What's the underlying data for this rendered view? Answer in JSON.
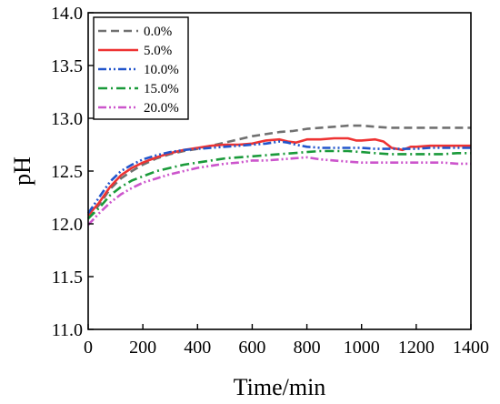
{
  "chart_data": {
    "type": "line",
    "title": "",
    "xlabel": "Time/min",
    "ylabel": "pH",
    "xlim": [
      0,
      1400
    ],
    "ylim": [
      11.0,
      14.0
    ],
    "xticks": [
      "0",
      "200",
      "400",
      "600",
      "800",
      "1000",
      "1200",
      "1400"
    ],
    "yticks": [
      "11.0",
      "11.5",
      "12.0",
      "12.5",
      "13.0",
      "13.5",
      "14.0"
    ],
    "grid": false,
    "legend_position": "top-left",
    "series": [
      {
        "name": "0.0%",
        "color": "#707070",
        "dash": "dash",
        "points": [
          [
            0,
            12.05
          ],
          [
            40,
            12.18
          ],
          [
            80,
            12.33
          ],
          [
            120,
            12.43
          ],
          [
            160,
            12.5
          ],
          [
            200,
            12.56
          ],
          [
            250,
            12.62
          ],
          [
            300,
            12.66
          ],
          [
            350,
            12.69
          ],
          [
            400,
            12.71
          ],
          [
            450,
            12.74
          ],
          [
            500,
            12.77
          ],
          [
            550,
            12.8
          ],
          [
            600,
            12.83
          ],
          [
            650,
            12.85
          ],
          [
            700,
            12.87
          ],
          [
            750,
            12.88
          ],
          [
            800,
            12.9
          ],
          [
            850,
            12.91
          ],
          [
            900,
            12.92
          ],
          [
            950,
            12.93
          ],
          [
            1000,
            12.93
          ],
          [
            1050,
            12.92
          ],
          [
            1100,
            12.91
          ],
          [
            1150,
            12.91
          ],
          [
            1200,
            12.91
          ],
          [
            1250,
            12.91
          ],
          [
            1300,
            12.91
          ],
          [
            1350,
            12.91
          ],
          [
            1400,
            12.91
          ]
        ]
      },
      {
        "name": "5.0%",
        "color": "#ee3333",
        "dash": "solid",
        "points": [
          [
            0,
            12.08
          ],
          [
            40,
            12.2
          ],
          [
            80,
            12.35
          ],
          [
            120,
            12.46
          ],
          [
            160,
            12.53
          ],
          [
            200,
            12.58
          ],
          [
            250,
            12.63
          ],
          [
            300,
            12.67
          ],
          [
            350,
            12.7
          ],
          [
            400,
            12.72
          ],
          [
            450,
            12.74
          ],
          [
            500,
            12.75
          ],
          [
            550,
            12.75
          ],
          [
            600,
            12.76
          ],
          [
            650,
            12.79
          ],
          [
            700,
            12.8
          ],
          [
            730,
            12.78
          ],
          [
            760,
            12.77
          ],
          [
            800,
            12.8
          ],
          [
            850,
            12.8
          ],
          [
            900,
            12.81
          ],
          [
            950,
            12.81
          ],
          [
            980,
            12.79
          ],
          [
            1000,
            12.79
          ],
          [
            1050,
            12.8
          ],
          [
            1080,
            12.78
          ],
          [
            1110,
            12.72
          ],
          [
            1150,
            12.7
          ],
          [
            1180,
            12.73
          ],
          [
            1200,
            12.73
          ],
          [
            1250,
            12.74
          ],
          [
            1300,
            12.74
          ],
          [
            1350,
            12.74
          ],
          [
            1400,
            12.74
          ]
        ]
      },
      {
        "name": "10.0%",
        "color": "#2255cc",
        "dash": "dashdotdot",
        "points": [
          [
            0,
            12.1
          ],
          [
            40,
            12.25
          ],
          [
            80,
            12.4
          ],
          [
            120,
            12.5
          ],
          [
            160,
            12.56
          ],
          [
            200,
            12.61
          ],
          [
            250,
            12.65
          ],
          [
            300,
            12.68
          ],
          [
            350,
            12.7
          ],
          [
            400,
            12.71
          ],
          [
            450,
            12.72
          ],
          [
            500,
            12.73
          ],
          [
            550,
            12.74
          ],
          [
            600,
            12.75
          ],
          [
            650,
            12.76
          ],
          [
            700,
            12.78
          ],
          [
            730,
            12.77
          ],
          [
            760,
            12.75
          ],
          [
            800,
            12.73
          ],
          [
            850,
            12.72
          ],
          [
            900,
            12.72
          ],
          [
            950,
            12.72
          ],
          [
            1000,
            12.72
          ],
          [
            1050,
            12.71
          ],
          [
            1100,
            12.71
          ],
          [
            1150,
            12.71
          ],
          [
            1200,
            12.71
          ],
          [
            1250,
            12.72
          ],
          [
            1300,
            12.72
          ],
          [
            1350,
            12.72
          ],
          [
            1400,
            12.72
          ]
        ]
      },
      {
        "name": "15.0%",
        "color": "#1a9a3a",
        "dash": "dashdot",
        "points": [
          [
            0,
            12.05
          ],
          [
            40,
            12.15
          ],
          [
            80,
            12.27
          ],
          [
            120,
            12.35
          ],
          [
            160,
            12.41
          ],
          [
            200,
            12.45
          ],
          [
            250,
            12.5
          ],
          [
            300,
            12.53
          ],
          [
            350,
            12.56
          ],
          [
            400,
            12.58
          ],
          [
            450,
            12.6
          ],
          [
            500,
            12.62
          ],
          [
            550,
            12.63
          ],
          [
            600,
            12.64
          ],
          [
            650,
            12.65
          ],
          [
            700,
            12.66
          ],
          [
            750,
            12.67
          ],
          [
            800,
            12.68
          ],
          [
            850,
            12.69
          ],
          [
            900,
            12.69
          ],
          [
            950,
            12.69
          ],
          [
            1000,
            12.68
          ],
          [
            1050,
            12.67
          ],
          [
            1100,
            12.66
          ],
          [
            1150,
            12.66
          ],
          [
            1200,
            12.66
          ],
          [
            1250,
            12.66
          ],
          [
            1300,
            12.66
          ],
          [
            1350,
            12.67
          ],
          [
            1400,
            12.67
          ]
        ]
      },
      {
        "name": "20.0%",
        "color": "#cc55cc",
        "dash": "dashdotdot",
        "points": [
          [
            0,
            11.99
          ],
          [
            40,
            12.1
          ],
          [
            80,
            12.2
          ],
          [
            120,
            12.28
          ],
          [
            160,
            12.34
          ],
          [
            200,
            12.39
          ],
          [
            250,
            12.43
          ],
          [
            300,
            12.47
          ],
          [
            350,
            12.5
          ],
          [
            400,
            12.53
          ],
          [
            450,
            12.55
          ],
          [
            500,
            12.57
          ],
          [
            550,
            12.58
          ],
          [
            600,
            12.6
          ],
          [
            650,
            12.6
          ],
          [
            700,
            12.61
          ],
          [
            750,
            12.62
          ],
          [
            800,
            12.63
          ],
          [
            850,
            12.61
          ],
          [
            900,
            12.6
          ],
          [
            950,
            12.59
          ],
          [
            1000,
            12.58
          ],
          [
            1050,
            12.58
          ],
          [
            1100,
            12.58
          ],
          [
            1150,
            12.58
          ],
          [
            1200,
            12.58
          ],
          [
            1250,
            12.58
          ],
          [
            1300,
            12.58
          ],
          [
            1350,
            12.57
          ],
          [
            1400,
            12.57
          ]
        ]
      }
    ]
  }
}
